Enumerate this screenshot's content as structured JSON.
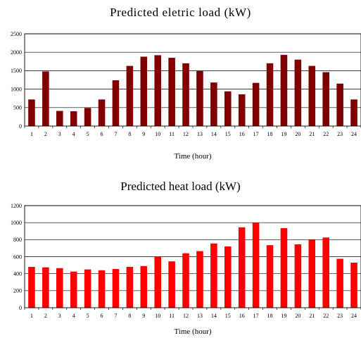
{
  "chart_data": [
    {
      "type": "bar",
      "title": "Predicted eletric load (kW)",
      "xlabel": "Time (hour)",
      "ylabel": "",
      "categories": [
        "1",
        "2",
        "3",
        "4",
        "5",
        "6",
        "7",
        "8",
        "9",
        "10",
        "11",
        "12",
        "13",
        "14",
        "15",
        "16",
        "17",
        "18",
        "19",
        "20",
        "21",
        "22",
        "23",
        "24"
      ],
      "values": [
        720,
        1480,
        410,
        400,
        490,
        720,
        1240,
        1630,
        1880,
        1920,
        1850,
        1700,
        1490,
        1180,
        940,
        860,
        1170,
        1700,
        1930,
        1800,
        1630,
        1460,
        1150,
        720
      ],
      "ylim": [
        0,
        2500
      ],
      "yticks": [
        0,
        500,
        1000,
        1500,
        2000,
        2500
      ],
      "grid": true,
      "color": "#800000"
    },
    {
      "type": "bar",
      "title": "Predicted heat load (kW)",
      "xlabel": "Time (hour)",
      "ylabel": "",
      "categories": [
        "1",
        "2",
        "3",
        "4",
        "5",
        "6",
        "7",
        "8",
        "9",
        "10",
        "11",
        "12",
        "13",
        "14",
        "15",
        "16",
        "17",
        "18",
        "19",
        "20",
        "21",
        "22",
        "23",
        "24"
      ],
      "values": [
        480,
        475,
        465,
        425,
        450,
        440,
        455,
        480,
        490,
        600,
        545,
        640,
        665,
        755,
        720,
        945,
        1000,
        735,
        935,
        745,
        800,
        825,
        575,
        530
      ],
      "ylim": [
        0,
        1200
      ],
      "yticks": [
        0,
        200,
        400,
        600,
        800,
        1000,
        1200
      ],
      "grid": true,
      "color": "#ff0000"
    }
  ]
}
